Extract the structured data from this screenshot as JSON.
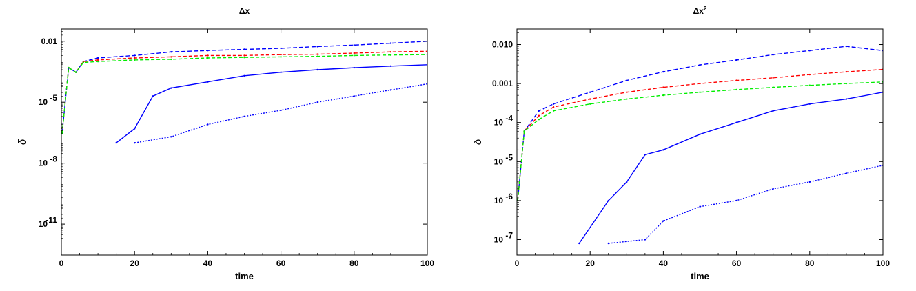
{
  "chart_data": [
    {
      "type": "line",
      "title": "Δx",
      "xlabel": "time",
      "ylabel": "δ",
      "yscale": "log",
      "xlim": [
        0,
        100
      ],
      "ylim": [
        3e-13,
        0.04
      ],
      "xticks": [
        0,
        20,
        40,
        60,
        80,
        100
      ],
      "yticks": [
        {
          "value": 0.01,
          "label": "0.01",
          "sup": ""
        },
        {
          "value": 1e-05,
          "label": "10",
          "sup": "-5"
        },
        {
          "value": 1e-08,
          "label": "10",
          "sup": "-8"
        },
        {
          "value": 1e-11,
          "label": "10",
          "sup": "-11"
        }
      ],
      "series": [
        {
          "color": "#0000ff",
          "dash": "6,3",
          "values": [
            [
              0.2,
              3e-07
            ],
            [
              2,
              0.0005
            ],
            [
              4,
              0.0003
            ],
            [
              6,
              0.001
            ],
            [
              10,
              0.0015
            ],
            [
              20,
              0.002
            ],
            [
              30,
              0.003
            ],
            [
              40,
              0.0035
            ],
            [
              50,
              0.004
            ],
            [
              60,
              0.0045
            ],
            [
              70,
              0.0055
            ],
            [
              80,
              0.0065
            ],
            [
              90,
              0.008
            ],
            [
              100,
              0.01
            ]
          ]
        },
        {
          "color": "#ff0000",
          "dash": "5,3",
          "values": [
            [
              0.2,
              3e-07
            ],
            [
              2,
              0.0005
            ],
            [
              4,
              0.0003
            ],
            [
              6,
              0.001
            ],
            [
              10,
              0.0012
            ],
            [
              20,
              0.0015
            ],
            [
              30,
              0.0017
            ],
            [
              40,
              0.002
            ],
            [
              50,
              0.002
            ],
            [
              60,
              0.0022
            ],
            [
              70,
              0.0023
            ],
            [
              80,
              0.0026
            ],
            [
              90,
              0.003
            ],
            [
              100,
              0.0032
            ]
          ]
        },
        {
          "color": "#00ee00",
          "dash": "5,3",
          "values": [
            [
              0.2,
              3e-07
            ],
            [
              2,
              0.0005
            ],
            [
              4,
              0.0003
            ],
            [
              6,
              0.0009
            ],
            [
              10,
              0.001
            ],
            [
              20,
              0.0012
            ],
            [
              30,
              0.0013
            ],
            [
              40,
              0.0015
            ],
            [
              50,
              0.0016
            ],
            [
              60,
              0.0017
            ],
            [
              70,
              0.0018
            ],
            [
              80,
              0.002
            ],
            [
              90,
              0.0021
            ],
            [
              100,
              0.0022
            ]
          ]
        },
        {
          "color": "#0000ff",
          "dash": "",
          "values": [
            [
              15,
              1e-07
            ],
            [
              20,
              5e-07
            ],
            [
              25,
              2e-05
            ],
            [
              30,
              5e-05
            ],
            [
              40,
              0.0001
            ],
            [
              50,
              0.0002
            ],
            [
              60,
              0.0003
            ],
            [
              70,
              0.0004
            ],
            [
              80,
              0.0005
            ],
            [
              90,
              0.0006
            ],
            [
              100,
              0.0007
            ]
          ]
        },
        {
          "color": "#0000ff",
          "dash": "2,2",
          "values": [
            [
              20,
              1e-07
            ],
            [
              30,
              2e-07
            ],
            [
              40,
              8e-07
            ],
            [
              50,
              2e-06
            ],
            [
              60,
              4e-06
            ],
            [
              70,
              1e-05
            ],
            [
              80,
              2e-05
            ],
            [
              90,
              4e-05
            ],
            [
              100,
              8e-05
            ]
          ]
        }
      ]
    },
    {
      "type": "line",
      "title": "Δx",
      "title_sup": "2",
      "xlabel": "time",
      "ylabel": "δ",
      "yscale": "log",
      "xlim": [
        0,
        100
      ],
      "ylim": [
        4e-08,
        0.025
      ],
      "xticks": [
        0,
        20,
        40,
        60,
        80,
        100
      ],
      "yticks": [
        {
          "value": 0.01,
          "label": "0.010",
          "sup": ""
        },
        {
          "value": 0.001,
          "label": "0.001",
          "sup": ""
        },
        {
          "value": 0.0001,
          "label": "10",
          "sup": "-4"
        },
        {
          "value": 1e-05,
          "label": "10",
          "sup": "-5"
        },
        {
          "value": 1e-06,
          "label": "10",
          "sup": "-6"
        },
        {
          "value": 1e-07,
          "label": "10",
          "sup": "-7"
        }
      ],
      "series": [
        {
          "color": "#0000ff",
          "dash": "6,3",
          "values": [
            [
              0.2,
              1e-06
            ],
            [
              2,
              6e-05
            ],
            [
              6,
              0.0002
            ],
            [
              10,
              0.0003
            ],
            [
              20,
              0.0006
            ],
            [
              30,
              0.0012
            ],
            [
              40,
              0.002
            ],
            [
              50,
              0.003
            ],
            [
              60,
              0.004
            ],
            [
              70,
              0.0055
            ],
            [
              80,
              0.007
            ],
            [
              90,
              0.009
            ],
            [
              100,
              0.007
            ]
          ]
        },
        {
          "color": "#ff0000",
          "dash": "5,3",
          "values": [
            [
              0.2,
              1e-06
            ],
            [
              2,
              6e-05
            ],
            [
              6,
              0.00015
            ],
            [
              10,
              0.00025
            ],
            [
              20,
              0.0004
            ],
            [
              30,
              0.0006
            ],
            [
              40,
              0.0008
            ],
            [
              50,
              0.001
            ],
            [
              60,
              0.0012
            ],
            [
              70,
              0.0014
            ],
            [
              80,
              0.0017
            ],
            [
              90,
              0.002
            ],
            [
              100,
              0.0023
            ]
          ]
        },
        {
          "color": "#00ee00",
          "dash": "5,3",
          "values": [
            [
              0.2,
              1e-06
            ],
            [
              2,
              6e-05
            ],
            [
              6,
              0.00012
            ],
            [
              10,
              0.0002
            ],
            [
              20,
              0.0003
            ],
            [
              30,
              0.0004
            ],
            [
              40,
              0.0005
            ],
            [
              50,
              0.0006
            ],
            [
              60,
              0.0007
            ],
            [
              70,
              0.0008
            ],
            [
              80,
              0.0009
            ],
            [
              90,
              0.001
            ],
            [
              100,
              0.0011
            ]
          ]
        },
        {
          "color": "#0000ff",
          "dash": "",
          "values": [
            [
              17,
              8e-08
            ],
            [
              25,
              1e-06
            ],
            [
              30,
              3e-06
            ],
            [
              35,
              1.5e-05
            ],
            [
              40,
              2e-05
            ],
            [
              50,
              5e-05
            ],
            [
              60,
              0.0001
            ],
            [
              70,
              0.0002
            ],
            [
              80,
              0.0003
            ],
            [
              90,
              0.0004
            ],
            [
              100,
              0.0006
            ]
          ]
        },
        {
          "color": "#0000ff",
          "dash": "2,2",
          "values": [
            [
              25,
              8e-08
            ],
            [
              35,
              1e-07
            ],
            [
              40,
              3e-07
            ],
            [
              50,
              7e-07
            ],
            [
              60,
              1e-06
            ],
            [
              70,
              2e-06
            ],
            [
              80,
              3e-06
            ],
            [
              90,
              5e-06
            ],
            [
              100,
              8e-06
            ]
          ]
        }
      ]
    }
  ]
}
